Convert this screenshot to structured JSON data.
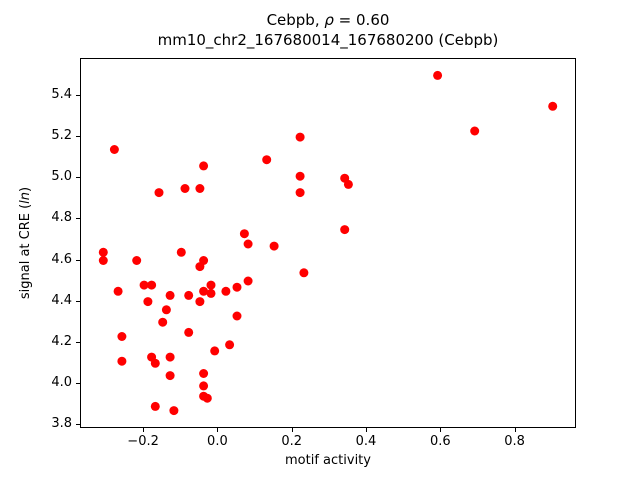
{
  "title": {
    "prefix": "Cebpb, ",
    "rho": "ρ",
    "suffix": " = 0.60",
    "line2": "mm10_chr2_167680014_167680200 (Cebpb)"
  },
  "ylabel_parts": {
    "prefix": "signal at CRE (",
    "italic": "ln",
    "suffix": ")"
  },
  "chart_data": {
    "type": "scatter",
    "title": "Cebpb, ρ = 0.60",
    "subtitle": "mm10_chr2_167680014_167680200 (Cebpb)",
    "xlabel": "motif activity",
    "ylabel": "signal at CRE (ln)",
    "xlim": [
      -0.37,
      0.96
    ],
    "ylim": [
      3.79,
      5.58
    ],
    "grid": false,
    "legend": "none",
    "marker_color": "#ff0000",
    "xticks": [
      -0.2,
      0.0,
      0.2,
      0.4,
      0.6,
      0.8
    ],
    "xtick_labels": [
      "−0.2",
      "0.0",
      "0.2",
      "0.4",
      "0.6",
      "0.8"
    ],
    "yticks": [
      3.8,
      4.0,
      4.2,
      4.4,
      4.6,
      4.8,
      5.0,
      5.2,
      5.4
    ],
    "ytick_labels": [
      "3.8",
      "4.0",
      "4.2",
      "4.4",
      "4.6",
      "4.8",
      "5.0",
      "5.2",
      "5.4"
    ],
    "points": [
      [
        -0.31,
        4.64
      ],
      [
        -0.31,
        4.6
      ],
      [
        -0.28,
        5.14
      ],
      [
        -0.27,
        4.45
      ],
      [
        -0.26,
        4.23
      ],
      [
        -0.26,
        4.11
      ],
      [
        -0.22,
        4.6
      ],
      [
        -0.2,
        4.48
      ],
      [
        -0.18,
        4.48
      ],
      [
        -0.19,
        4.4
      ],
      [
        -0.18,
        4.13
      ],
      [
        -0.17,
        4.1
      ],
      [
        -0.17,
        3.89
      ],
      [
        -0.16,
        4.93
      ],
      [
        -0.15,
        4.3
      ],
      [
        -0.14,
        4.36
      ],
      [
        -0.13,
        4.43
      ],
      [
        -0.13,
        4.13
      ],
      [
        -0.13,
        4.04
      ],
      [
        -0.12,
        3.87
      ],
      [
        -0.1,
        4.64
      ],
      [
        -0.09,
        4.95
      ],
      [
        -0.08,
        4.43
      ],
      [
        -0.08,
        4.25
      ],
      [
        -0.05,
        4.95
      ],
      [
        -0.04,
        5.06
      ],
      [
        -0.04,
        4.6
      ],
      [
        -0.05,
        4.57
      ],
      [
        -0.04,
        4.45
      ],
      [
        -0.05,
        4.4
      ],
      [
        -0.04,
        4.05
      ],
      [
        -0.04,
        3.99
      ],
      [
        -0.04,
        3.94
      ],
      [
        -0.03,
        3.93
      ],
      [
        -0.02,
        4.48
      ],
      [
        -0.02,
        4.44
      ],
      [
        -0.01,
        4.16
      ],
      [
        0.02,
        4.45
      ],
      [
        0.03,
        4.19
      ],
      [
        0.05,
        4.47
      ],
      [
        0.05,
        4.33
      ],
      [
        0.07,
        4.73
      ],
      [
        0.08,
        4.68
      ],
      [
        0.08,
        4.5
      ],
      [
        0.13,
        5.09
      ],
      [
        0.15,
        4.67
      ],
      [
        0.22,
        5.2
      ],
      [
        0.22,
        5.01
      ],
      [
        0.22,
        4.93
      ],
      [
        0.23,
        4.54
      ],
      [
        0.34,
        5.0
      ],
      [
        0.35,
        4.97
      ],
      [
        0.34,
        4.75
      ],
      [
        0.59,
        5.5
      ],
      [
        0.69,
        5.23
      ],
      [
        0.9,
        5.35
      ]
    ]
  }
}
